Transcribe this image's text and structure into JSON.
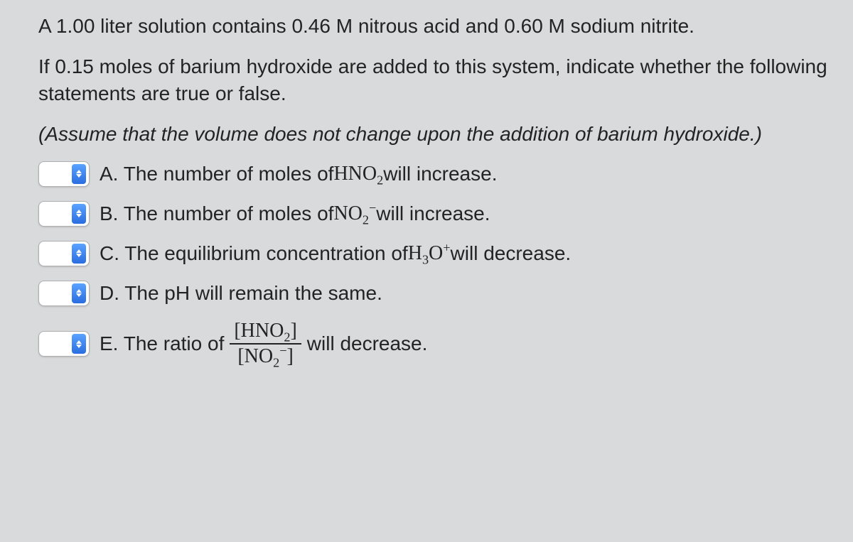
{
  "background_color": "#d9dadb",
  "text_color": "#232323",
  "font_size_pt": 21,
  "paragraphs": {
    "p1_a": "A 1.00 liter solution contains 0.46 M nitrous acid and 0.60 M sodium nitrite.",
    "p2_a": "If 0.15 moles of barium hydroxide are added to this system, indicate whether the following statements are true or false.",
    "p3_a": "(Assume that the volume does not change upon the addition of barium hydroxide.)"
  },
  "options": {
    "A": {
      "pre": "A. The number of moles of ",
      "formula_html": "HNO<sub>2</sub>",
      "post": " will increase."
    },
    "B": {
      "pre": "B. The number of moles of ",
      "formula_html": "NO<sub>2</sub><sup>−</sup>",
      "post": " will increase."
    },
    "C": {
      "pre": "C. The equilibrium concentration of ",
      "formula_html": "H<sub>3</sub>O<sup>+</sup>",
      "post": " will decrease."
    },
    "D": {
      "pre": "D. The pH will remain the same.",
      "formula_html": "",
      "post": ""
    },
    "E": {
      "pre": "E. The ratio of ",
      "frac_num": "[HNO<sub>2</sub>]",
      "frac_den": "[NO<sub>2</sub><sup>−</sup>]",
      "post": " will decrease."
    }
  },
  "select_style": {
    "box_bg": "#ffffff",
    "box_border": "#b0b0b0",
    "stepper_bg_top": "#5aa3ff",
    "stepper_bg_bottom": "#2a6de0",
    "arrow_color": "#ffffff"
  }
}
